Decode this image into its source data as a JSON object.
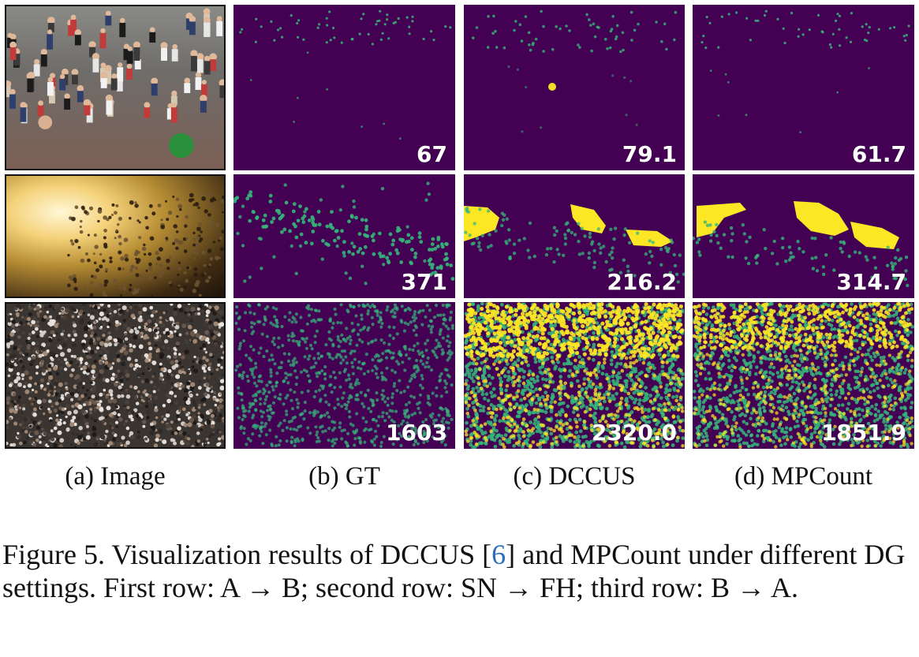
{
  "figure": {
    "columns": [
      {
        "label": "(a) Image"
      },
      {
        "label": "(b) GT"
      },
      {
        "label": "(c) DCCUS"
      },
      {
        "label": "(d) MPCount"
      }
    ],
    "rows": [
      {
        "gt": "67",
        "dccus": "79.1",
        "mpcount": "61.7"
      },
      {
        "gt": "371",
        "dccus": "216.2",
        "mpcount": "314.7"
      },
      {
        "gt": "1603",
        "dccus": "2320.0",
        "mpcount": "1851.9"
      }
    ],
    "caption": {
      "part1": "Figure 5. Visualization results of DCCUS [",
      "ref": "6",
      "part2": "] and MPCount under different DG settings. First row: A → B; second row: SN → FH; third row: B → A."
    },
    "colors": {
      "density_background": "#440154",
      "density_dot": "#35b779",
      "density_high": "#fde725"
    }
  }
}
